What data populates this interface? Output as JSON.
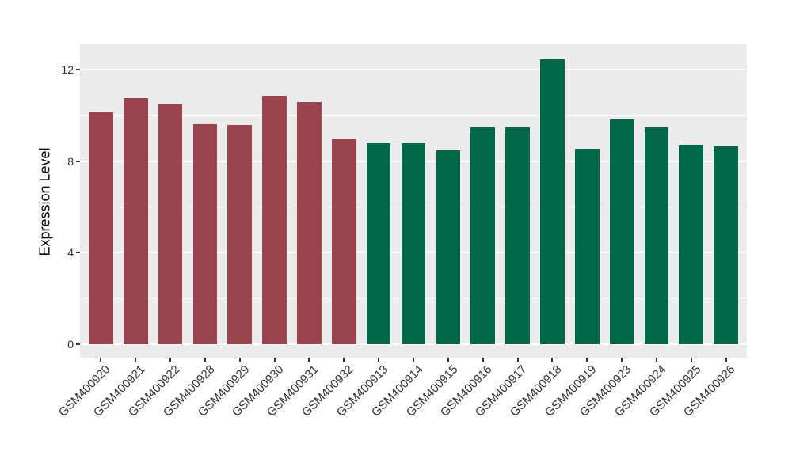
{
  "chart_data": {
    "type": "bar",
    "title": "",
    "xlabel": "",
    "ylabel": "Expression Level",
    "yticks": [
      "0",
      "4",
      "8",
      "12"
    ],
    "ytick_values": [
      0,
      4,
      8,
      12
    ],
    "ytick_minor_values": [
      2,
      6,
      10
    ],
    "y_range": [
      -0.59,
      13.1
    ],
    "x_range": [
      0.4,
      19.6
    ],
    "bar_width_units": 0.7,
    "grid": "on",
    "legend": "none",
    "categories": [
      "GSM400920",
      "GSM400921",
      "GSM400922",
      "GSM400928",
      "GSM400929",
      "GSM400930",
      "GSM400931",
      "GSM400932",
      "GSM400913",
      "GSM400914",
      "GSM400915",
      "GSM400916",
      "GSM400917",
      "GSM400918",
      "GSM400919",
      "GSM400923",
      "GSM400924",
      "GSM400925",
      "GSM400926"
    ],
    "values": [
      10.13,
      10.76,
      10.46,
      9.62,
      9.58,
      10.86,
      10.56,
      8.96,
      8.77,
      8.78,
      8.47,
      9.46,
      9.47,
      12.44,
      8.53,
      9.83,
      9.47,
      8.72,
      8.64
    ],
    "bar_colors": [
      "#9B4450",
      "#9B4450",
      "#9B4450",
      "#9B4450",
      "#9B4450",
      "#9B4450",
      "#9B4450",
      "#9B4450",
      "#006749",
      "#006749",
      "#006749",
      "#006749",
      "#006749",
      "#006749",
      "#006749",
      "#006749",
      "#006749",
      "#006749",
      "#006749"
    ]
  },
  "style": {
    "panel_bg": "#EBEBEB",
    "grid_color": "#FFFFFF",
    "tick_mark_color": "#333333",
    "tick_label_color": "#303030",
    "axis_title_color": "#000000",
    "figure_bg": "#FFFFFF"
  }
}
